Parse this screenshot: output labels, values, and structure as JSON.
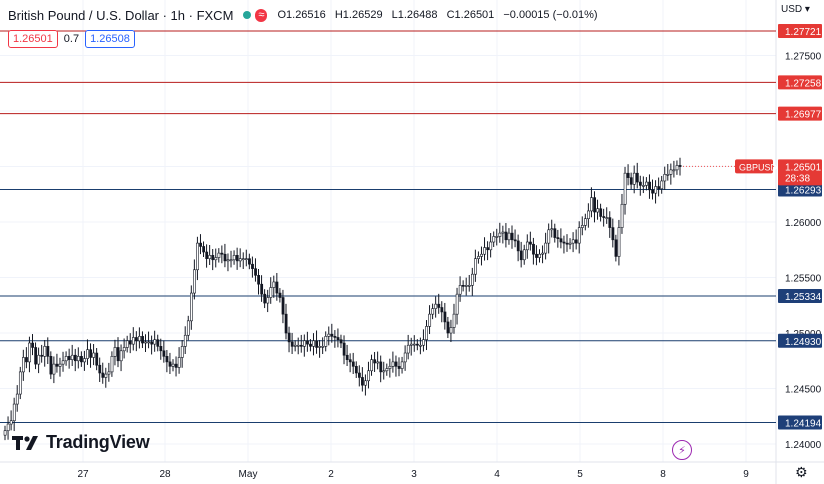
{
  "header": {
    "symbol": "British Pound / U.S. Dollar · 1h · FXCM",
    "open_label": "O",
    "open": "1.26516",
    "high_label": "H",
    "high": "1.26529",
    "low_label": "L",
    "low": "1.26488",
    "close_label": "C",
    "close": "1.26501",
    "change": "−0.00015 (−0.01%)",
    "status_wave": "≈"
  },
  "quote": {
    "sell": "1.26501",
    "spread": "0.7",
    "buy": "1.26508"
  },
  "currency_button": "USD ▾",
  "logo_text": "TradingView",
  "colors": {
    "up": "#26a69a",
    "down": "#ef5350",
    "candle_body": "#131722",
    "resistance_line": "#b71c1c",
    "support_line": "#1a3e6e",
    "resistance_label_bg": "#e53935",
    "support_label_bg": "#1e3f78",
    "price_label_bg": "#e53935",
    "grid": "#f0f3fa"
  },
  "chart_data": {
    "type": "candlestick",
    "title": "British Pound / U.S. Dollar · 1h · FXCM",
    "ylim": [
      1.2389,
      1.2785
    ],
    "y_ticks": [
      "1.27500",
      "1.27000",
      "1.26500",
      "1.26000",
      "1.25500",
      "1.25000",
      "1.24500",
      "1.24000"
    ],
    "x_ticks": [
      "27",
      "28",
      "May",
      "2",
      "3",
      "4",
      "5",
      "8",
      "9"
    ],
    "horizontal_levels": [
      {
        "value": 1.27721,
        "label": "1.27721",
        "kind": "resistance"
      },
      {
        "value": 1.27258,
        "label": "1.27258",
        "kind": "resistance"
      },
      {
        "value": 1.26977,
        "label": "1.26977",
        "kind": "resistance"
      },
      {
        "value": 1.26293,
        "label": "1.26293",
        "kind": "support"
      },
      {
        "value": 1.25334,
        "label": "1.25334",
        "kind": "support"
      },
      {
        "value": 1.2493,
        "label": "1.24930",
        "kind": "support"
      },
      {
        "value": 1.24194,
        "label": "1.24194",
        "kind": "support"
      }
    ],
    "last_price": {
      "symbol": "GBPUSD",
      "value": 1.26501,
      "label": "1.26501",
      "countdown": "28:38"
    },
    "closes": [
      1.2412,
      1.2418,
      1.2421,
      1.2436,
      1.2445,
      1.2465,
      1.2478,
      1.2474,
      1.2491,
      1.2487,
      1.2472,
      1.248,
      1.2479,
      1.2488,
      1.2479,
      1.2463,
      1.2472,
      1.247,
      1.2472,
      1.2475,
      1.2479,
      1.2476,
      1.248,
      1.2475,
      1.2479,
      1.2474,
      1.2477,
      1.2485,
      1.2478,
      1.2482,
      1.2471,
      1.2464,
      1.246,
      1.2463,
      1.2465,
      1.2479,
      1.2487,
      1.2475,
      1.2484,
      1.2487,
      1.2493,
      1.249,
      1.2496,
      1.2493,
      1.2497,
      1.2491,
      1.2492,
      1.2492,
      1.249,
      1.2494,
      1.2488,
      1.2484,
      1.2479,
      1.2474,
      1.247,
      1.2472,
      1.2469,
      1.2478,
      1.2488,
      1.2498,
      1.2511,
      1.2536,
      1.2557,
      1.2581,
      1.2578,
      1.2573,
      1.2567,
      1.257,
      1.2566,
      1.2568,
      1.2572,
      1.2571,
      1.2565,
      1.2566,
      1.2566,
      1.257,
      1.2565,
      1.2567,
      1.2567,
      1.2567,
      1.2562,
      1.2558,
      1.2552,
      1.2544,
      1.2535,
      1.2527,
      1.2532,
      1.2541,
      1.2546,
      1.2536,
      1.2532,
      1.2517,
      1.25,
      1.2492,
      1.2488,
      1.2489,
      1.2489,
      1.2488,
      1.2493,
      1.249,
      1.2488,
      1.2493,
      1.2487,
      1.2488,
      1.2488,
      1.2497,
      1.2499,
      1.2497,
      1.2496,
      1.2494,
      1.2491,
      1.248,
      1.2476,
      1.2474,
      1.247,
      1.2464,
      1.246,
      1.2453,
      1.2457,
      1.2466,
      1.2476,
      1.2473,
      1.2474,
      1.2465,
      1.2466,
      1.2468,
      1.247,
      1.2474,
      1.247,
      1.2468,
      1.2474,
      1.2482,
      1.2489,
      1.249,
      1.249,
      1.2489,
      1.2489,
      1.2494,
      1.2506,
      1.2517,
      1.2522,
      1.2526,
      1.2523,
      1.2519,
      1.251,
      1.25,
      1.2505,
      1.2517,
      1.2535,
      1.2543,
      1.2542,
      1.2543,
      1.2543,
      1.2553,
      1.2567,
      1.2569,
      1.2571,
      1.2577,
      1.2575,
      1.2582,
      1.2587,
      1.2587,
      1.259,
      1.2591,
      1.2584,
      1.259,
      1.2584,
      1.2583,
      1.2574,
      1.2566,
      1.2575,
      1.2582,
      1.258,
      1.2571,
      1.2568,
      1.2571,
      1.2572,
      1.2581,
      1.2593,
      1.2594,
      1.2586,
      1.2585,
      1.2582,
      1.2581,
      1.258,
      1.2581,
      1.2584,
      1.2581,
      1.2595,
      1.2597,
      1.2603,
      1.261,
      1.2622,
      1.2609,
      1.2612,
      1.2605,
      1.2604,
      1.2604,
      1.2595,
      1.2584,
      1.2569,
      1.2595,
      1.2616,
      1.2644,
      1.264,
      1.2634,
      1.2644,
      1.2636,
      1.2633,
      1.2633,
      1.2636,
      1.2629,
      1.2626,
      1.2632,
      1.263,
      1.2637,
      1.2643,
      1.2643,
      1.2647,
      1.2647,
      1.2651,
      1.265
    ]
  }
}
